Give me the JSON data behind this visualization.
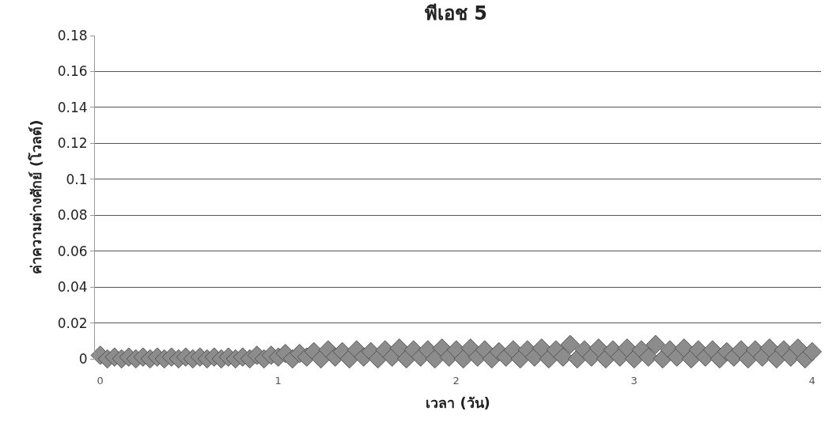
{
  "chart_data": {
    "type": "scatter",
    "title": "พีเอช 5",
    "xlabel": "เวลา (วัน)",
    "ylabel": "ค่าความต่างศักย์ (โวลต์)",
    "x": [
      0,
      0.04,
      0.08,
      0.12,
      0.16,
      0.2,
      0.24,
      0.28,
      0.32,
      0.36,
      0.4,
      0.44,
      0.48,
      0.52,
      0.56,
      0.6,
      0.64,
      0.68,
      0.72,
      0.76,
      0.8,
      0.84,
      0.88,
      0.92,
      0.96,
      1,
      1.04,
      1.08,
      1.12,
      1.16,
      1.2,
      1.24,
      1.28,
      1.32,
      1.36,
      1.4,
      1.44,
      1.48,
      1.52,
      1.56,
      1.6,
      1.64,
      1.68,
      1.72,
      1.76,
      1.8,
      1.84,
      1.88,
      1.92,
      1.96,
      2,
      2.04,
      2.08,
      2.12,
      2.16,
      2.2,
      2.24,
      2.28,
      2.32,
      2.36,
      2.4,
      2.44,
      2.48,
      2.52,
      2.56,
      2.6,
      2.64,
      2.68,
      2.72,
      2.76,
      2.8,
      2.84,
      2.88,
      2.92,
      2.96,
      3,
      3.04,
      3.08,
      3.12,
      3.16,
      3.2,
      3.24,
      3.28,
      3.32,
      3.36,
      3.4,
      3.44,
      3.48,
      3.52,
      3.56,
      3.6,
      3.64,
      3.68,
      3.72,
      3.76,
      3.8,
      3.84,
      3.88,
      3.92,
      3.96,
      4
    ],
    "series": [
      {
        "color": "#8c8c8c",
        "values": [
          0.002,
          0,
          0.001,
          0,
          0.001,
          0,
          0.001,
          0,
          0.001,
          0,
          0.001,
          0,
          0.001,
          0,
          0.001,
          0,
          0.001,
          0,
          0.001,
          0,
          0.001,
          0,
          0.002,
          0,
          0.002,
          0.001,
          0.003,
          0,
          0.003,
          0.001,
          0.004,
          0,
          0.005,
          0.001,
          0.004,
          0,
          0.005,
          0.001,
          0.004,
          0,
          0.005,
          0.001,
          0.006,
          0,
          0.005,
          0.001,
          0.005,
          0,
          0.006,
          0.001,
          0.005,
          0,
          0.006,
          0.001,
          0.005,
          0,
          0.004,
          0.001,
          0.005,
          0,
          0.005,
          0.001,
          0.006,
          0,
          0.005,
          0.001,
          0.008,
          0,
          0.005,
          0.001,
          0.006,
          0,
          0.005,
          0.001,
          0.006,
          0,
          0.005,
          0.001,
          0.008,
          0,
          0.005,
          0.001,
          0.006,
          0,
          0.005,
          0.001,
          0.005,
          0,
          0.004,
          0.001,
          0.005,
          0,
          0.005,
          0.001,
          0.006,
          0,
          0.005,
          0.001,
          0.006,
          0,
          0.004
        ]
      }
    ],
    "xlim": [
      -0.03,
      4.05
    ],
    "xticks": [
      0,
      1,
      2,
      3,
      4
    ],
    "ylim": [
      0,
      0.18
    ],
    "yticks": [
      0,
      0.02,
      0.04,
      0.06,
      0.08,
      0.1,
      0.12,
      0.14,
      0.16,
      0.18
    ],
    "grid": "y",
    "marker": "diamond"
  }
}
